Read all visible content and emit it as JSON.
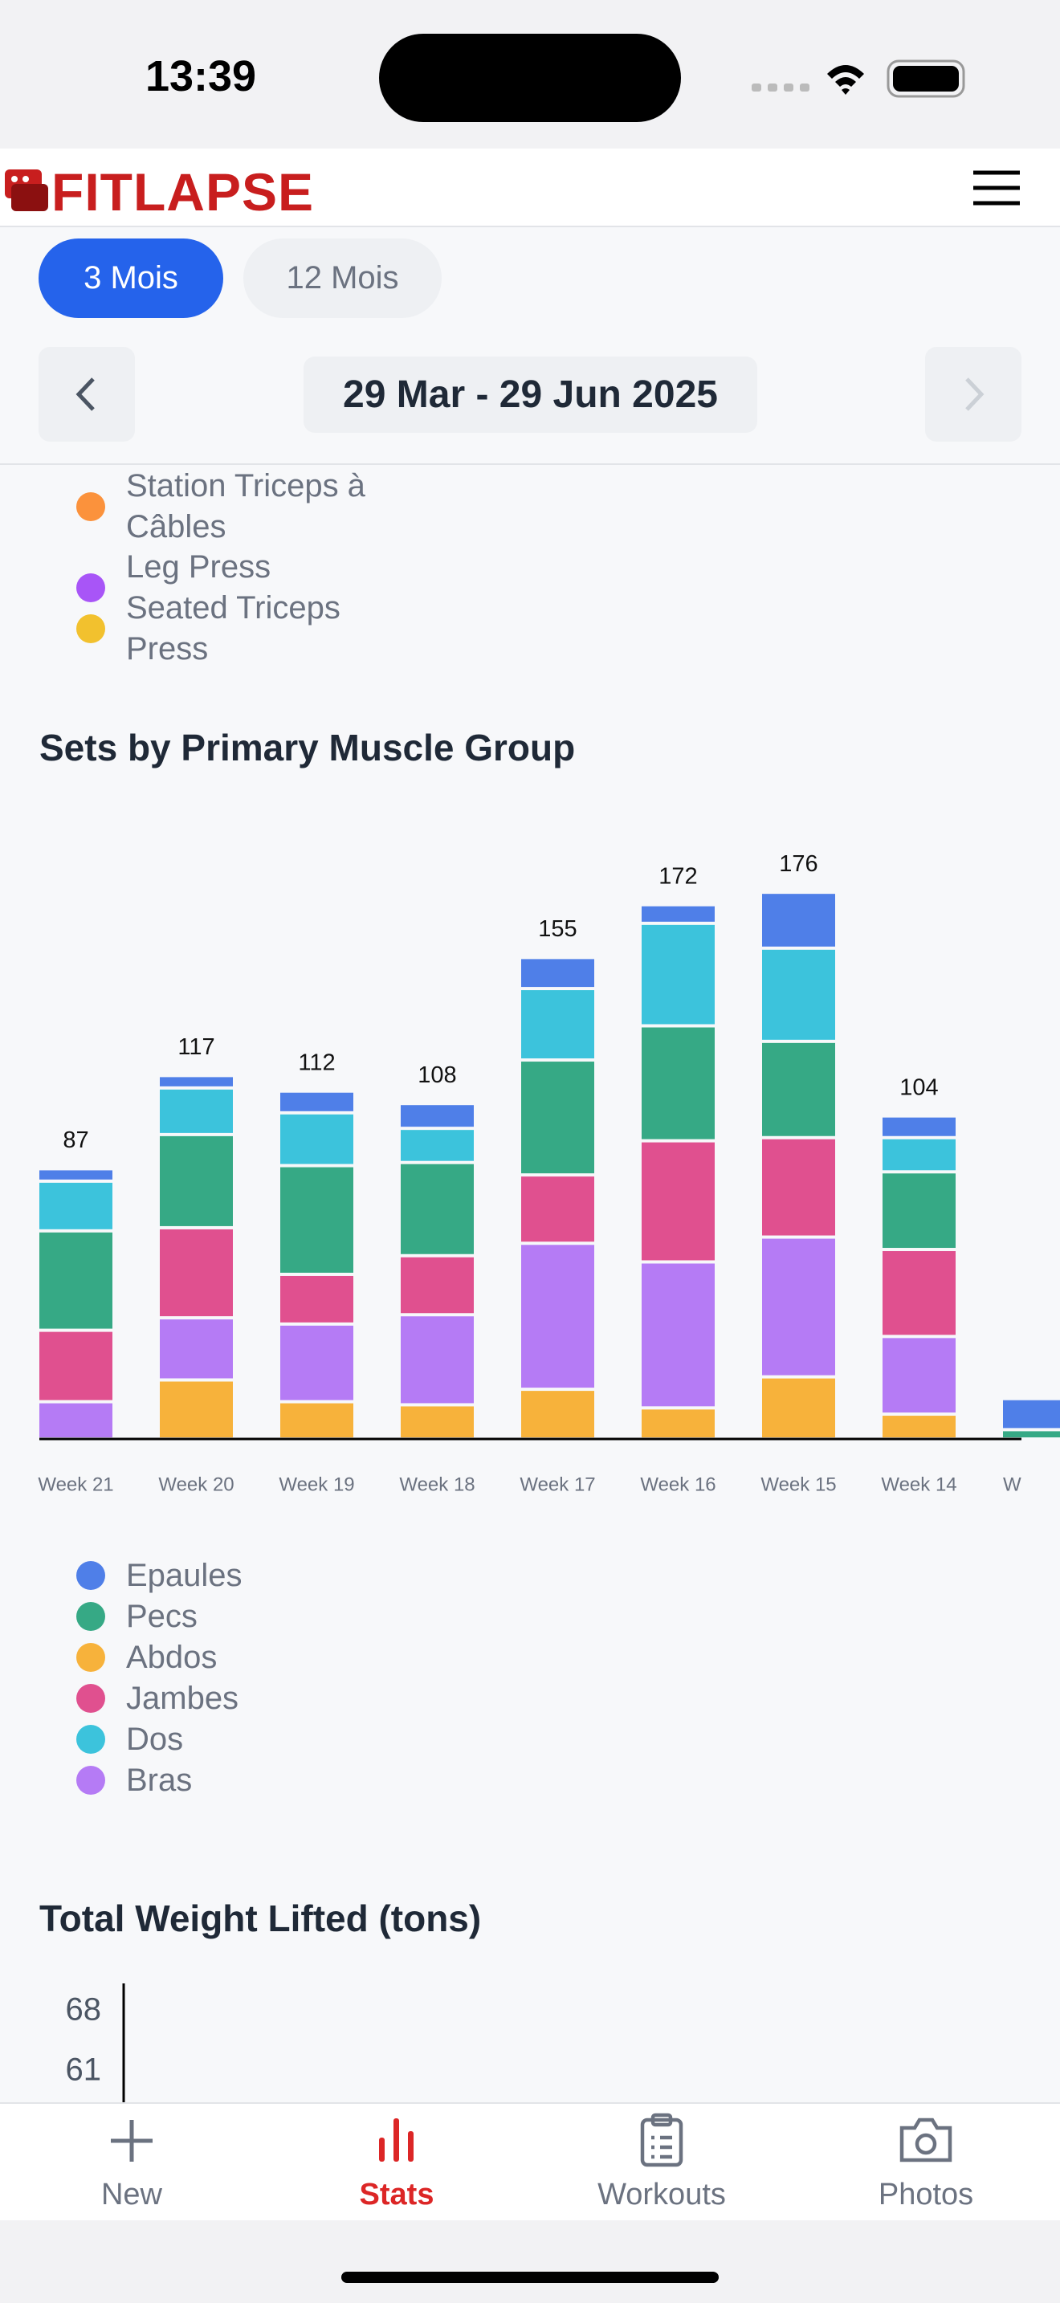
{
  "status_bar": {
    "time": "13:39"
  },
  "header": {
    "brand": "FITLAPSE"
  },
  "tabs": [
    "3 Mois",
    "12 Mois"
  ],
  "date_range": "29 Mar - 29 Jun 2025",
  "exercise_legend": [
    {
      "name": "Station Triceps à Câbles",
      "color": "#fb923c"
    },
    {
      "name": "Leg Press",
      "color": "#a855f7"
    },
    {
      "name": "Seated Triceps Press",
      "color": "#f2c12e"
    }
  ],
  "chart_data": [
    {
      "type": "stacked_bar",
      "title": "Sets by Primary Muscle Group",
      "categories": [
        "Week 21",
        "Week 20",
        "Week 19",
        "Week 18",
        "Week 17",
        "Week 16",
        "Week 15",
        "Week 14",
        "W"
      ],
      "series": [
        {
          "name": "Epaules",
          "color": "#4f7fe8",
          "values": [
            4,
            4,
            7,
            8,
            10,
            6,
            18,
            7,
            10
          ]
        },
        {
          "name": "Pecs",
          "color": "#36a985",
          "values": [
            32,
            30,
            35,
            30,
            37,
            37,
            31,
            25,
            3
          ]
        },
        {
          "name": "Abdos",
          "color": "#f7b23b",
          "values": [
            0,
            19,
            12,
            11,
            16,
            10,
            20,
            8,
            0
          ]
        },
        {
          "name": "Jambes",
          "color": "#e0508f",
          "values": [
            23,
            29,
            16,
            19,
            22,
            39,
            32,
            28,
            0
          ]
        },
        {
          "name": "Dos",
          "color": "#3cc3dc",
          "values": [
            16,
            15,
            17,
            11,
            23,
            33,
            30,
            11,
            0
          ]
        },
        {
          "name": "Bras",
          "color": "#b57bf5",
          "values": [
            12,
            20,
            25,
            29,
            47,
            47,
            45,
            25,
            0
          ]
        }
      ],
      "totals": [
        87,
        117,
        112,
        108,
        155,
        172,
        176,
        104,
        null
      ],
      "ylim": [
        0,
        190
      ]
    },
    {
      "type": "line",
      "title": "Total Weight Lifted (tons)",
      "yticks": [
        68,
        61
      ]
    }
  ],
  "nav": [
    {
      "label": "New",
      "active": false
    },
    {
      "label": "Stats",
      "active": true
    },
    {
      "label": "Workouts",
      "active": false
    },
    {
      "label": "Photos",
      "active": false
    }
  ]
}
